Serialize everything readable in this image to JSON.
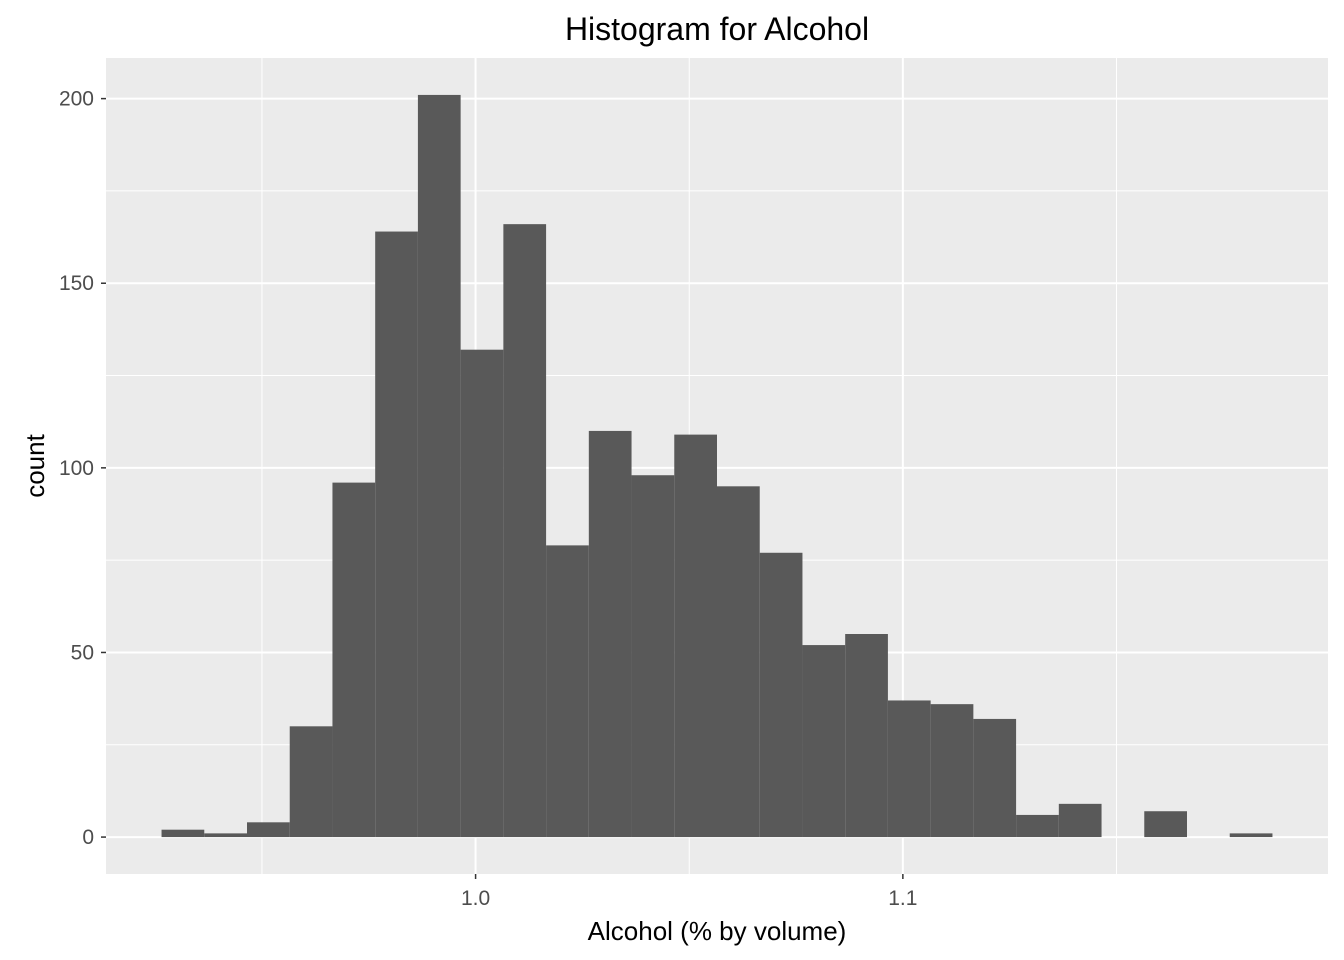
{
  "chart_data": {
    "type": "bar",
    "title": "Histogram for Alcohol",
    "xlabel": "Alcohol (% by volume)",
    "ylabel": "count",
    "bin_width": 0.01,
    "bins": [
      {
        "x0": 0.9265,
        "x1": 0.9365,
        "count": 2
      },
      {
        "x0": 0.9365,
        "x1": 0.9465,
        "count": 1
      },
      {
        "x0": 0.9465,
        "x1": 0.9565,
        "count": 4
      },
      {
        "x0": 0.9565,
        "x1": 0.9665,
        "count": 30
      },
      {
        "x0": 0.9665,
        "x1": 0.9765,
        "count": 96
      },
      {
        "x0": 0.9765,
        "x1": 0.9865,
        "count": 164
      },
      {
        "x0": 0.9865,
        "x1": 0.9965,
        "count": 201
      },
      {
        "x0": 0.9965,
        "x1": 1.0065,
        "count": 132
      },
      {
        "x0": 1.0065,
        "x1": 1.0165,
        "count": 166
      },
      {
        "x0": 1.0165,
        "x1": 1.0265,
        "count": 79
      },
      {
        "x0": 1.0265,
        "x1": 1.0365,
        "count": 110
      },
      {
        "x0": 1.0365,
        "x1": 1.0465,
        "count": 98
      },
      {
        "x0": 1.0465,
        "x1": 1.0565,
        "count": 109
      },
      {
        "x0": 1.0565,
        "x1": 1.0665,
        "count": 95
      },
      {
        "x0": 1.0665,
        "x1": 1.0765,
        "count": 77
      },
      {
        "x0": 1.0765,
        "x1": 1.0865,
        "count": 52
      },
      {
        "x0": 1.0865,
        "x1": 1.0965,
        "count": 55
      },
      {
        "x0": 1.0965,
        "x1": 1.1065,
        "count": 37
      },
      {
        "x0": 1.1065,
        "x1": 1.1165,
        "count": 36
      },
      {
        "x0": 1.1165,
        "x1": 1.1265,
        "count": 32
      },
      {
        "x0": 1.1265,
        "x1": 1.1365,
        "count": 6
      },
      {
        "x0": 1.1365,
        "x1": 1.1465,
        "count": 9
      },
      {
        "x0": 1.1465,
        "x1": 1.1565,
        "count": 0
      },
      {
        "x0": 1.1565,
        "x1": 1.1665,
        "count": 7
      },
      {
        "x0": 1.1665,
        "x1": 1.1765,
        "count": 0
      },
      {
        "x0": 1.1765,
        "x1": 1.1865,
        "count": 1
      }
    ],
    "xlim": [
      0.9135,
      1.1995
    ],
    "ylim": [
      -10,
      211
    ],
    "x_ticks": [
      {
        "value": 1.0,
        "label": "1.0"
      },
      {
        "value": 1.1,
        "label": "1.1"
      }
    ],
    "x_minor_ticks": [
      0.95,
      1.05,
      1.15
    ],
    "y_ticks": [
      {
        "value": 0,
        "label": "0"
      },
      {
        "value": 50,
        "label": "50"
      },
      {
        "value": 100,
        "label": "100"
      },
      {
        "value": 150,
        "label": "150"
      },
      {
        "value": 200,
        "label": "200"
      }
    ],
    "y_minor_ticks": [
      25,
      75,
      125,
      175
    ],
    "grid": true,
    "legend": "none",
    "colors": {
      "bar_fill": "#595959",
      "panel_background": "#ebebeb",
      "grid_line": "#ffffff",
      "tick_label": "#4d4d4d",
      "tick_mark": "#333333",
      "text": "#000000"
    }
  }
}
